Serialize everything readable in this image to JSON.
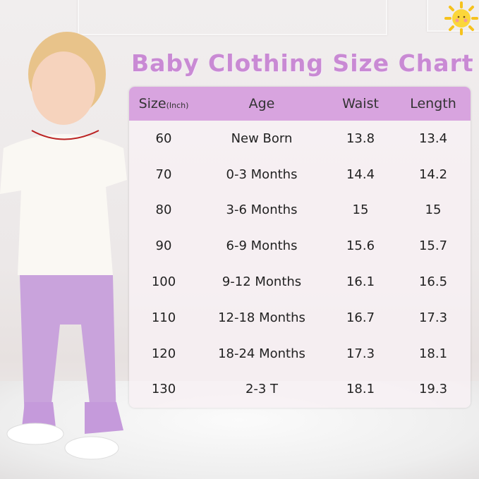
{
  "title": "Baby Clothing Size Chart",
  "table": {
    "headers": {
      "size": "Size",
      "size_unit": "(Inch)",
      "age": "Age",
      "waist": "Waist",
      "length": "Length"
    },
    "rows": [
      {
        "size": "60",
        "age": "New Born",
        "waist": "13.8",
        "length": "13.4"
      },
      {
        "size": "70",
        "age": "0-3 Months",
        "waist": "14.4",
        "length": "14.2"
      },
      {
        "size": "80",
        "age": "3-6 Months",
        "waist": "15",
        "length": "15"
      },
      {
        "size": "90",
        "age": "6-9 Months",
        "waist": "15.6",
        "length": "15.7"
      },
      {
        "size": "100",
        "age": "9-12 Months",
        "waist": "16.1",
        "length": "16.5"
      },
      {
        "size": "110",
        "age": "12-18 Months",
        "waist": "16.7",
        "length": "17.3"
      },
      {
        "size": "120",
        "age": "18-24 Months",
        "waist": "17.3",
        "length": "18.1"
      },
      {
        "size": "130",
        "age": "2-3 T",
        "waist": "18.1",
        "length": "19.3"
      }
    ]
  },
  "colors": {
    "accent": "#d8a4df",
    "title": "#c98ad4",
    "leggings": "#c9a3dc"
  },
  "icons": [
    "sun-icon"
  ]
}
